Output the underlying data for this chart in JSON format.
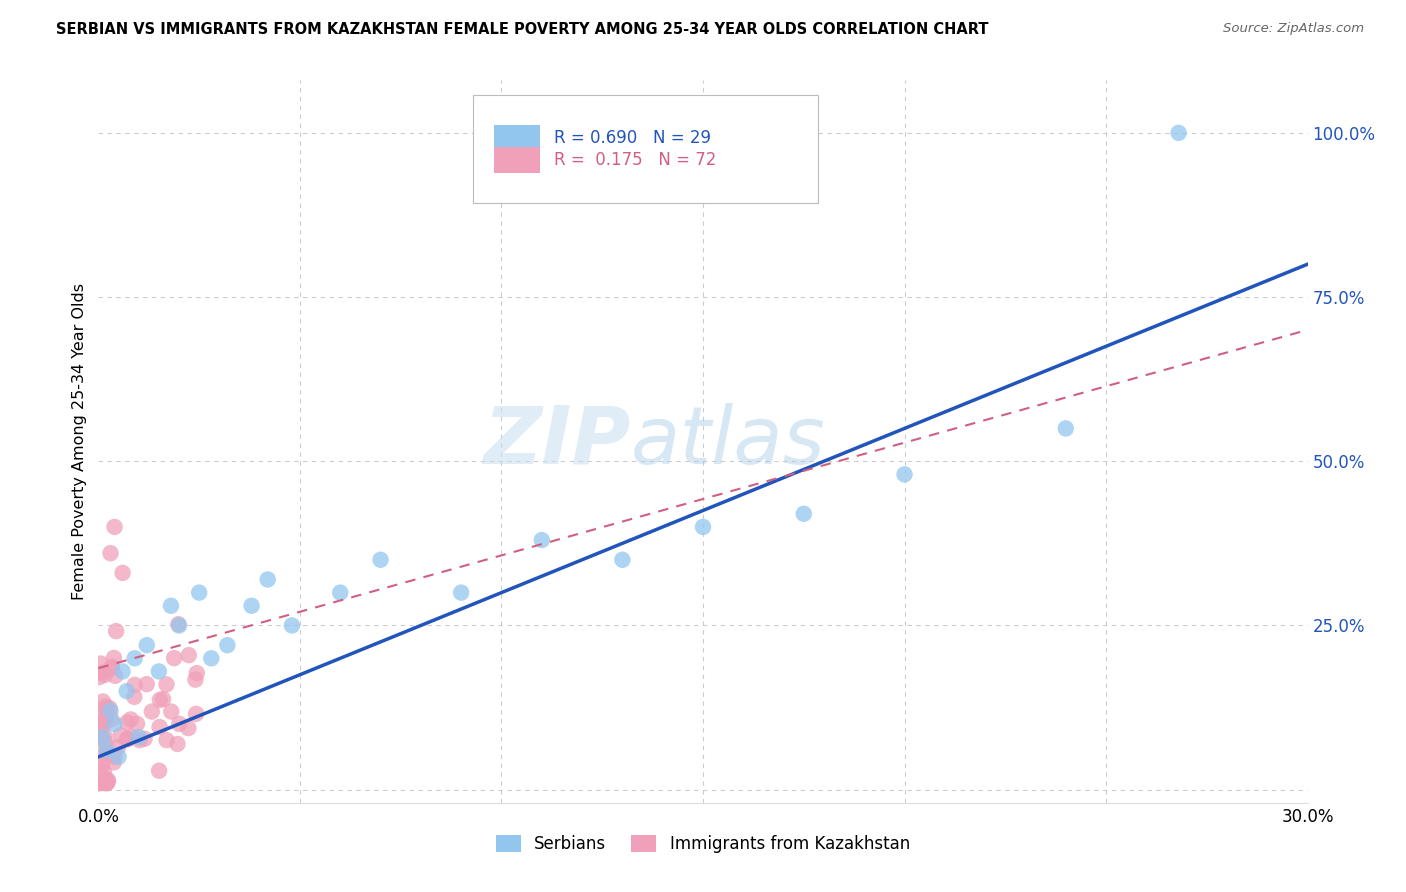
{
  "title": "SERBIAN VS IMMIGRANTS FROM KAZAKHSTAN FEMALE POVERTY AMONG 25-34 YEAR OLDS CORRELATION CHART",
  "source": "Source: ZipAtlas.com",
  "ylabel": "Female Poverty Among 25-34 Year Olds",
  "xlim": [
    0.0,
    0.3
  ],
  "ylim": [
    -0.02,
    1.08
  ],
  "yticks": [
    0.0,
    0.25,
    0.5,
    0.75,
    1.0
  ],
  "ytick_labels": [
    "",
    "25.0%",
    "50.0%",
    "75.0%",
    "100.0%"
  ],
  "xticks": [
    0.0,
    0.05,
    0.1,
    0.15,
    0.2,
    0.25,
    0.3
  ],
  "xtick_labels": [
    "0.0%",
    "",
    "",
    "",
    "",
    "",
    "30.0%"
  ],
  "r_serbian": 0.69,
  "n_serbian": 29,
  "r_kazakhstan": 0.175,
  "n_kazakhstan": 72,
  "color_serbian": "#93c6ef",
  "color_kazakhstan": "#f0a0b8",
  "color_line_serbian": "#2255bb",
  "color_line_kazakhstan": "#d06080",
  "watermark_zip": "ZIP",
  "watermark_atlas": "atlas",
  "background_color": "#ffffff",
  "line_s_x0": 0.0,
  "line_s_y0": 0.05,
  "line_s_x1": 0.3,
  "line_s_y1": 0.8,
  "line_k_x0": 0.0,
  "line_k_y0": 0.185,
  "line_k_x1": 0.3,
  "line_k_y1": 0.7
}
